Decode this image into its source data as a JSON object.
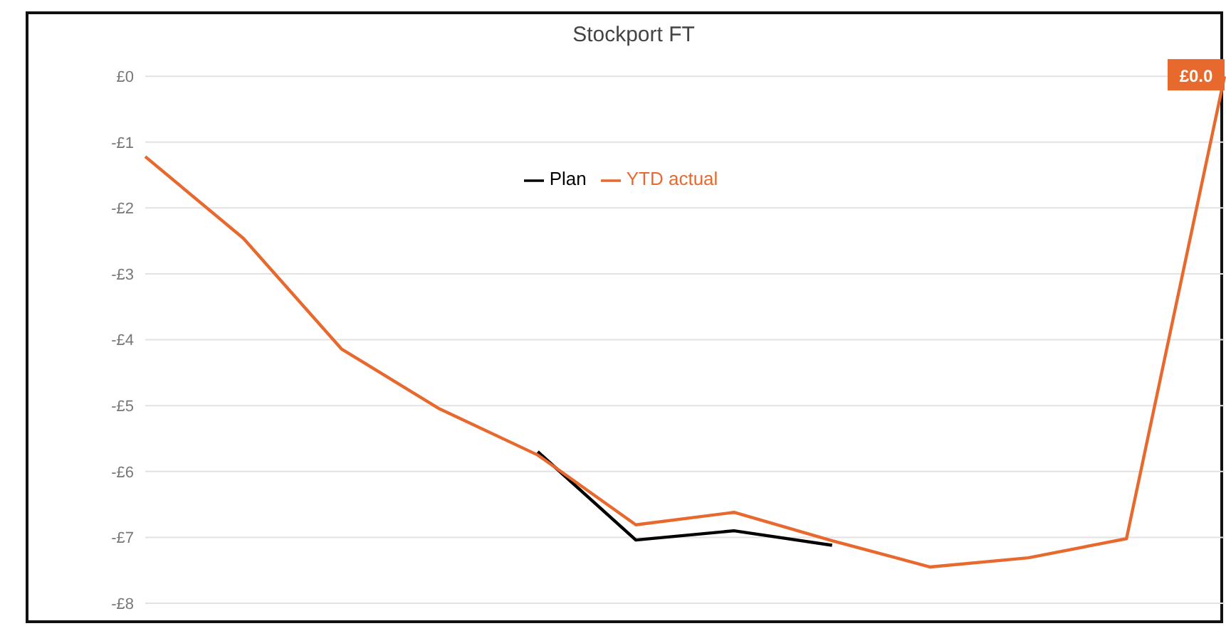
{
  "chart_data": {
    "type": "line",
    "title": "Stockport FT",
    "categories": [
      null,
      null,
      null,
      null,
      null,
      null,
      null,
      null,
      null,
      null,
      null,
      null
    ],
    "series": [
      {
        "name": "Plan",
        "color": "#000000",
        "values": [
          null,
          null,
          null,
          null,
          -5.7,
          -7.04,
          -6.9,
          -7.12,
          null,
          null,
          null,
          null
        ]
      },
      {
        "name": "YTD actual",
        "color": "#e8692d",
        "values": [
          -1.22,
          -2.46,
          -4.14,
          -5.05,
          -5.75,
          -6.81,
          -6.62,
          -7.05,
          -7.45,
          -7.31,
          -7.02,
          0
        ],
        "value_labels": [
          null,
          null,
          null,
          null,
          null,
          null,
          null,
          null,
          null,
          null,
          null,
          "£0.0"
        ]
      }
    ],
    "ylim": [
      -8,
      0
    ],
    "yticks": [
      {
        "value": 0,
        "label": "£0"
      },
      {
        "value": -1,
        "label": "-£1"
      },
      {
        "value": -2,
        "label": "-£2"
      },
      {
        "value": -3,
        "label": "-£3"
      },
      {
        "value": -4,
        "label": "-£4"
      },
      {
        "value": -5,
        "label": "-£5"
      },
      {
        "value": -6,
        "label": "-£6"
      },
      {
        "value": -7,
        "label": "-£7"
      },
      {
        "value": -8,
        "label": "-£8"
      }
    ],
    "grid": "y",
    "legend": "top",
    "tick_labels": "y",
    "marker": "none",
    "line_style": "solid"
  }
}
